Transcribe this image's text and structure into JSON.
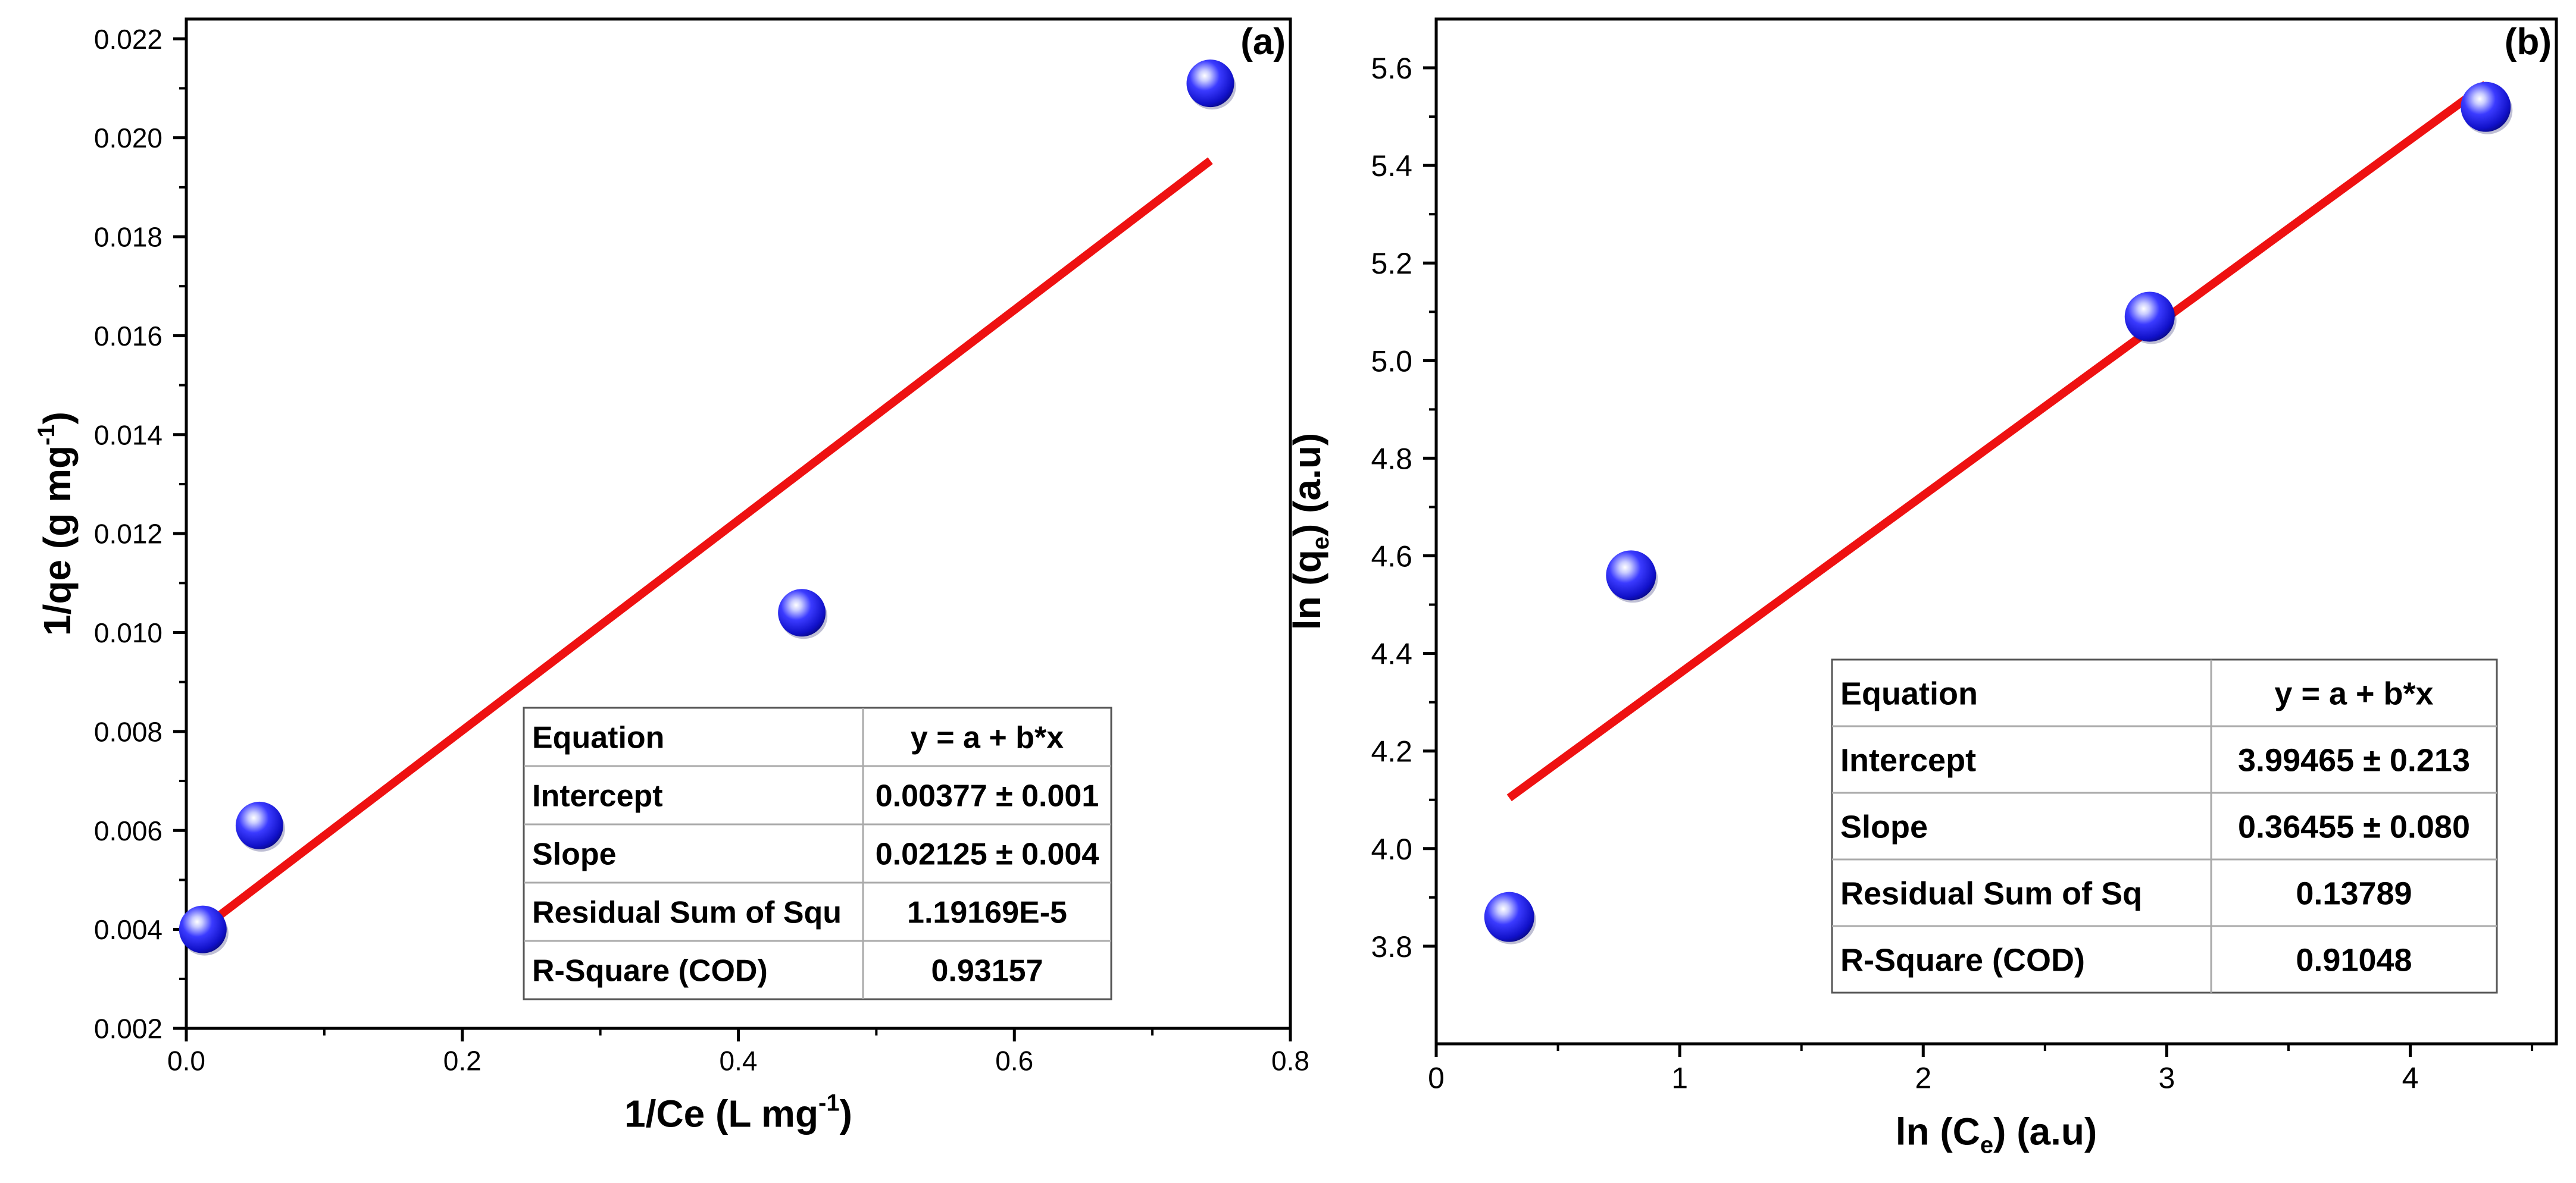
{
  "chart_data": [
    {
      "type": "scatter",
      "panel_label": "(a)",
      "xlabel": {
        "main": "1/Ce (L mg",
        "sup": "-1",
        "tail": ")"
      },
      "ylabel": {
        "main": "1/qe (g mg",
        "sup": "-1",
        "tail": ")"
      },
      "xlim": [
        0.0,
        0.8
      ],
      "ylim": [
        0.002,
        0.0224
      ],
      "xticks": [
        0.0,
        0.2,
        0.4,
        0.6,
        0.8
      ],
      "xtick_labels": [
        "0.0",
        "0.2",
        "0.4",
        "0.6",
        "0.8"
      ],
      "yticks": [
        0.002,
        0.004,
        0.006,
        0.008,
        0.01,
        0.012,
        0.014,
        0.016,
        0.018,
        0.02,
        0.022
      ],
      "ytick_labels": [
        "0.002",
        "0.004",
        "0.006",
        "0.008",
        "0.010",
        "0.012",
        "0.014",
        "0.016",
        "0.018",
        "0.020",
        "0.022"
      ],
      "points": [
        {
          "x": 0.012,
          "y": 0.004
        },
        {
          "x": 0.053,
          "y": 0.0061
        },
        {
          "x": 0.446,
          "y": 0.0104
        },
        {
          "x": 0.742,
          "y": 0.0211
        }
      ],
      "fit": {
        "intercept": 0.00377,
        "slope": 0.02125,
        "x_range": [
          0.012,
          0.742
        ]
      },
      "table": {
        "rows": [
          [
            "Equation",
            "y = a + b*x"
          ],
          [
            "Intercept",
            "0.00377 ± 0.001"
          ],
          [
            "Slope",
            "0.02125 ± 0.004"
          ],
          [
            "Residual Sum of Squ",
            "1.19169E-5"
          ],
          [
            "R-Square (COD)",
            "0.93157"
          ]
        ]
      },
      "colors": {
        "marker": "#1a1ae6",
        "fit": "#ee1111"
      }
    },
    {
      "type": "scatter",
      "panel_label": "(b)",
      "xlabel": {
        "main": "ln (C",
        "sub": "e",
        "tail": ") (a.u)"
      },
      "ylabel": {
        "main": "ln (q",
        "sub": "e",
        "tail": ") (a.u)"
      },
      "xlim": [
        0,
        4.6
      ],
      "ylim": [
        3.6,
        5.7
      ],
      "xticks": [
        0,
        1,
        2,
        3,
        4
      ],
      "xtick_labels": [
        "0",
        "1",
        "2",
        "3",
        "4"
      ],
      "yticks": [
        3.8,
        4.0,
        4.2,
        4.4,
        4.6,
        4.8,
        5.0,
        5.2,
        5.4,
        5.6
      ],
      "ytick_labels": [
        "3.8",
        "4.0",
        "4.2",
        "4.4",
        "4.6",
        "4.8",
        "5.0",
        "5.2",
        "5.4",
        "5.6"
      ],
      "points": [
        {
          "x": 0.3,
          "y": 3.86
        },
        {
          "x": 0.8,
          "y": 4.56
        },
        {
          "x": 2.93,
          "y": 5.09
        },
        {
          "x": 4.31,
          "y": 5.52
        }
      ],
      "fit": {
        "intercept": 3.99465,
        "slope": 0.36455,
        "x_range": [
          0.3,
          4.31
        ]
      },
      "table": {
        "rows": [
          [
            "Equation",
            "y = a + b*x"
          ],
          [
            "Intercept",
            "3.99465 ± 0.213"
          ],
          [
            "Slope",
            "0.36455 ± 0.080"
          ],
          [
            "Residual Sum of Sq",
            "0.13789"
          ],
          [
            "R-Square (COD)",
            "0.91048"
          ]
        ]
      },
      "colors": {
        "marker": "#1a1ae6",
        "fit": "#ee1111"
      }
    }
  ]
}
